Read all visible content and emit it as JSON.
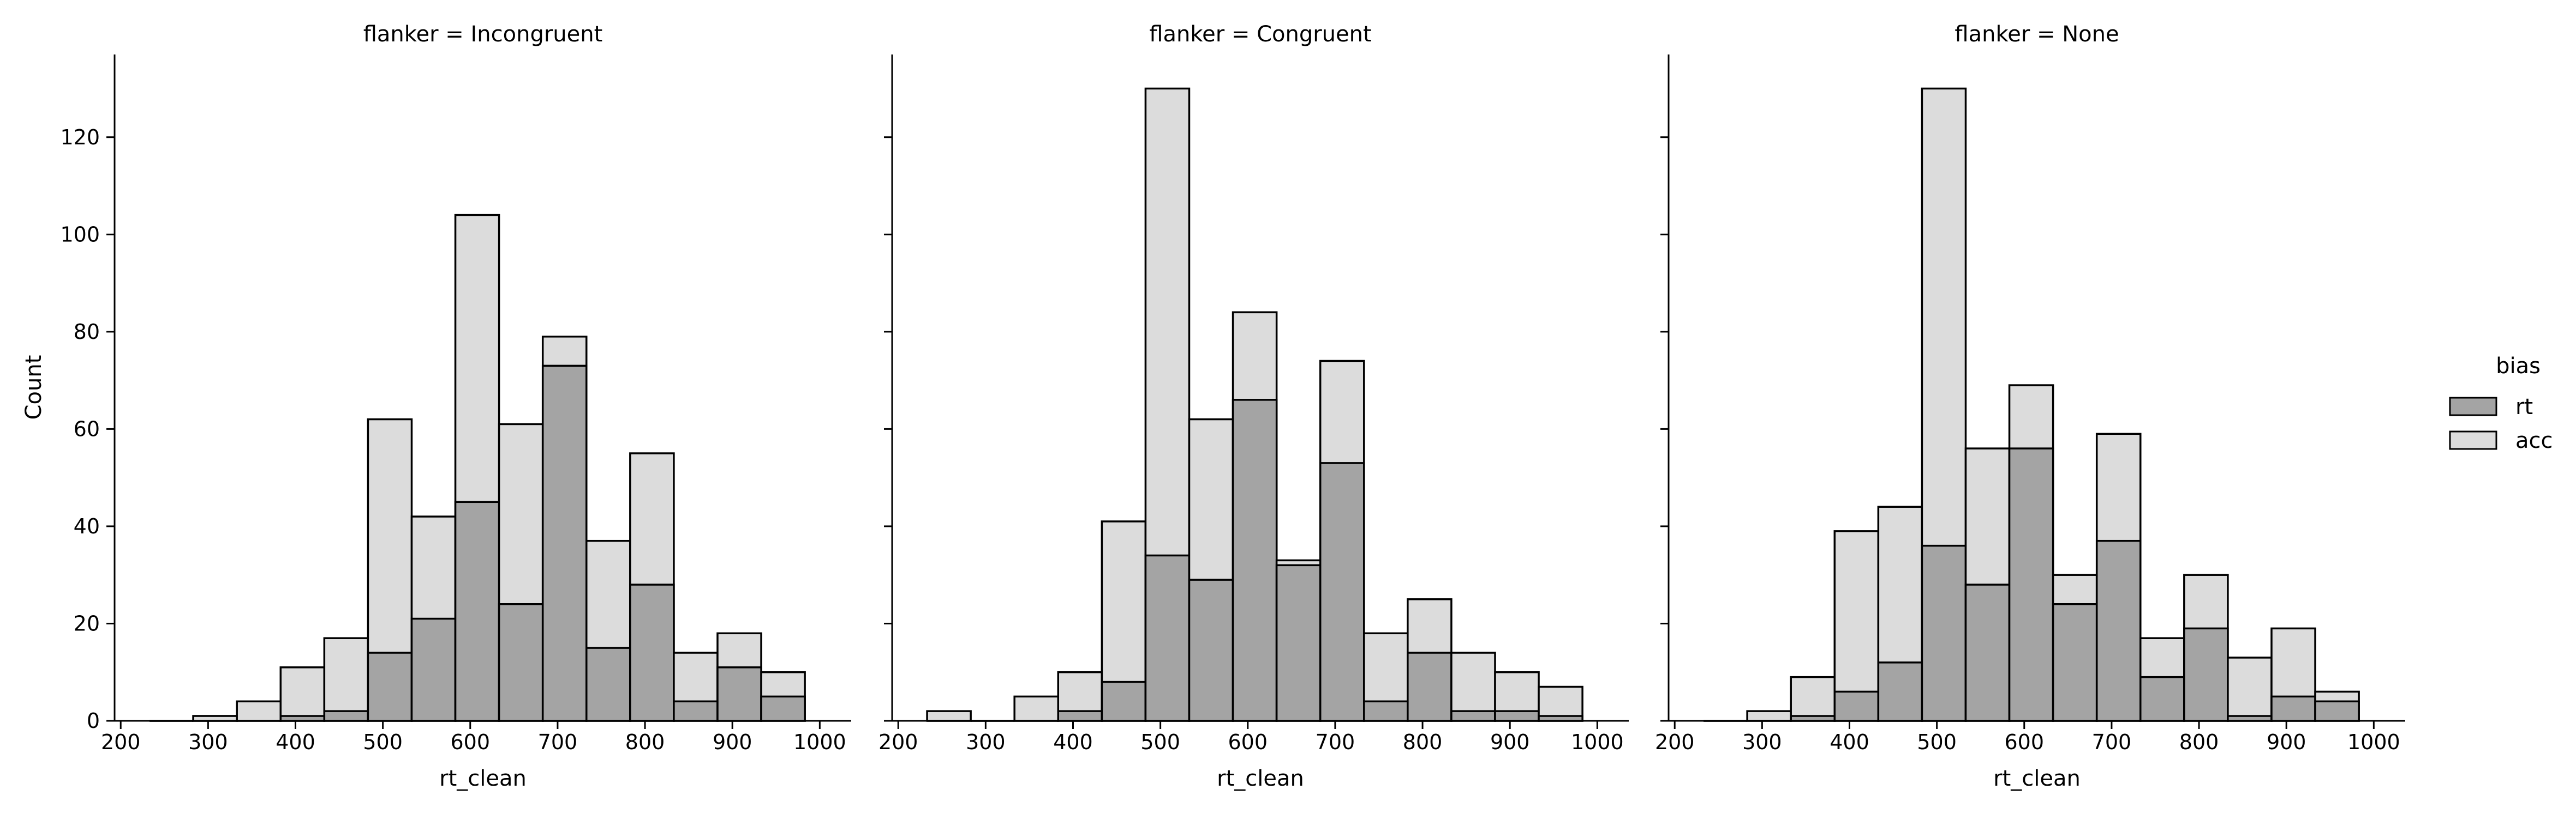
{
  "chart_data": {
    "type": "bar",
    "layout": "facet-grid",
    "x_label": "rt_clean",
    "y_label": "Count",
    "x_ticks": [
      200,
      300,
      400,
      500,
      600,
      700,
      800,
      900,
      1000
    ],
    "y_ticks": [
      0,
      20,
      40,
      60,
      80,
      100,
      120
    ],
    "xlim": [
      193,
      1036
    ],
    "ylim": [
      0,
      137
    ],
    "bin_edges": [
      233,
      283,
      333,
      383,
      433,
      483,
      533,
      583,
      633,
      683,
      733,
      783,
      833,
      883,
      933,
      983
    ],
    "colors": {
      "rt": "#a4a4a4",
      "acc": "#dcdcdc",
      "overlap": "#bababa",
      "edge": "#000000"
    },
    "legend": {
      "title": "bias",
      "placement": "right",
      "entries": [
        {
          "label": "rt",
          "color": "#a4a4a4"
        },
        {
          "label": "acc",
          "color": "#dcdcdc"
        }
      ]
    },
    "facets": [
      {
        "title": "flanker = Incongruent",
        "series": [
          {
            "name": "rt",
            "values": [
              0,
              1,
              0,
              1,
              2,
              14,
              21,
              45,
              24,
              73,
              15,
              28,
              4,
              11,
              5
            ]
          },
          {
            "name": "acc",
            "values": [
              0,
              1,
              4,
              11,
              17,
              62,
              42,
              104,
              61,
              79,
              37,
              55,
              14,
              18,
              10
            ]
          }
        ]
      },
      {
        "title": "flanker = Congruent",
        "series": [
          {
            "name": "rt",
            "values": [
              0,
              0,
              0,
              2,
              8,
              34,
              29,
              66,
              32,
              53,
              4,
              14,
              2,
              2,
              1
            ]
          },
          {
            "name": "acc",
            "values": [
              2,
              0,
              5,
              10,
              41,
              130,
              62,
              84,
              33,
              74,
              18,
              25,
              14,
              10,
              7
            ]
          }
        ]
      },
      {
        "title": "flanker = None",
        "series": [
          {
            "name": "rt",
            "values": [
              0,
              0,
              1,
              6,
              12,
              36,
              28,
              56,
              24,
              37,
              9,
              19,
              1,
              5,
              4
            ]
          },
          {
            "name": "acc",
            "values": [
              0,
              2,
              9,
              39,
              44,
              130,
              56,
              69,
              30,
              59,
              17,
              30,
              13,
              19,
              6
            ]
          }
        ]
      }
    ]
  }
}
